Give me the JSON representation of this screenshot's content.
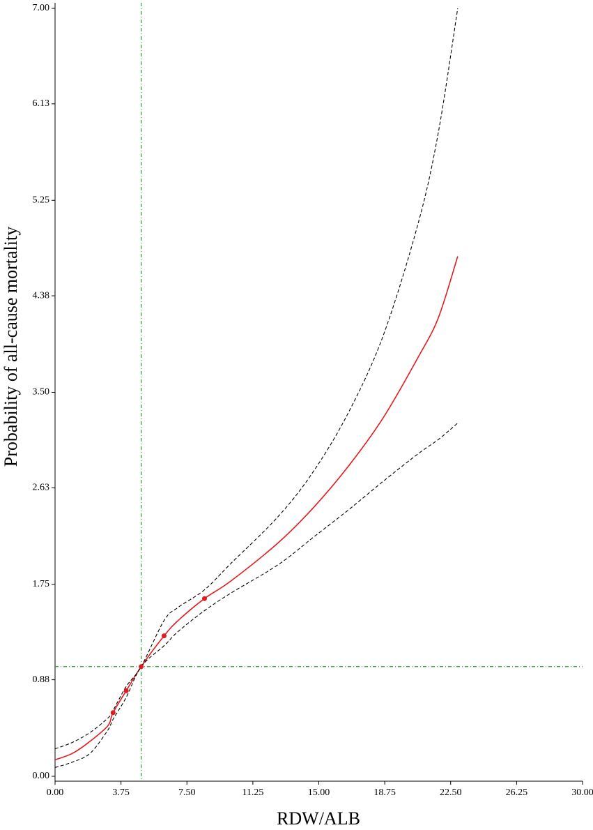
{
  "chart_data": {
    "type": "line",
    "x_label": "RDW/ALB",
    "y_label": "Probability of all-cause mortality",
    "x": [
      0,
      1,
      2,
      3,
      3.3,
      4.05,
      4.9,
      6.2,
      7,
      8.5,
      10,
      12.7,
      14.7,
      16.7,
      18.67,
      20.65,
      21.8,
      22.9
    ],
    "series": [
      {
        "color": "#e41a1c",
        "dashed": false,
        "values": [
          0.15,
          0.21,
          0.32,
          0.46,
          0.58,
          0.78,
          1.0,
          1.28,
          1.42,
          1.62,
          1.78,
          2.13,
          2.45,
          2.83,
          3.27,
          3.82,
          4.18,
          4.74
        ]
      },
      {
        "color": "#000000",
        "dashed": true,
        "values": [
          0.25,
          0.31,
          0.4,
          0.53,
          0.6,
          0.82,
          1.0,
          1.42,
          1.54,
          1.7,
          1.94,
          2.37,
          2.78,
          3.32,
          4.02,
          5.04,
          5.87,
          7.0
        ]
      },
      {
        "color": "#000000",
        "dashed": true,
        "values": [
          0.08,
          0.13,
          0.21,
          0.42,
          0.52,
          0.72,
          1.0,
          1.19,
          1.32,
          1.51,
          1.67,
          1.93,
          2.18,
          2.43,
          2.69,
          2.94,
          3.07,
          3.22
        ]
      }
    ],
    "points": {
      "color": "#e41a1c",
      "x": [
        3.3,
        4.05,
        4.9,
        6.2,
        8.5
      ],
      "values": [
        0.58,
        0.78,
        1.0,
        1.28,
        1.62
      ]
    },
    "reference_x": 4.9,
    "reference_y": 1.0,
    "reference_color": "#2e9a3a",
    "xlim": [
      0,
      30
    ],
    "ylim": [
      0,
      7
    ],
    "xticks": [
      {
        "value": 0,
        "label": "0.00"
      },
      3.75,
      {
        "value": 7.5,
        "label": "7.50"
      },
      11.25,
      {
        "value": 15,
        "label": "15.00"
      },
      18.75,
      {
        "value": 22.5,
        "label": "22.50"
      },
      26.25,
      {
        "value": 30,
        "label": "30.00"
      }
    ],
    "yticks": [
      {
        "value": 0,
        "label": "0.00"
      },
      0.88,
      1.75,
      2.63,
      {
        "value": 3.5,
        "label": "3.50"
      },
      4.38,
      5.25,
      6.13,
      {
        "value": 7,
        "label": "7.00"
      }
    ]
  }
}
